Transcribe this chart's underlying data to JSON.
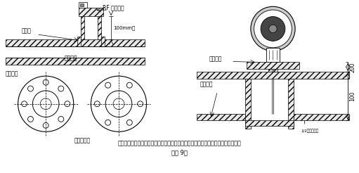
{
  "bg_color": "#ffffff",
  "title_line1": "插入式流量计短管制作、安装示意图，根据流量计算采用不同的法兰及短管公称直径",
  "title_line2": "（图 9）",
  "labels": {
    "rf_flange": "RF 配套法兰",
    "weld_point": "焊接点",
    "process_pipe": "工艺管道",
    "weld_stub": "焊接短管",
    "pipe_center": "管道中心线",
    "match_stub": "配套短管",
    "pipe_outer": "管道外壁",
    "dim_200": "200",
    "dim_100": "100",
    "dim_100mm": "100mm高",
    "half_dia": "1/2管量管外径"
  }
}
